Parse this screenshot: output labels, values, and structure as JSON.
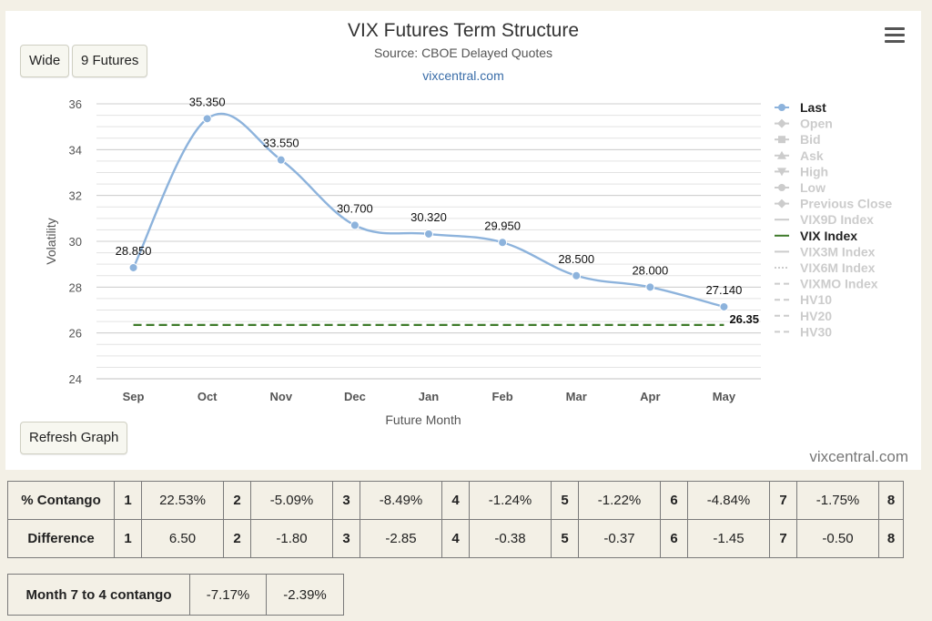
{
  "header": {
    "title": "VIX Futures Term Structure",
    "subtitle": "Source: CBOE Delayed Quotes",
    "link": "vixcentral.com",
    "credits": "vixcentral.com"
  },
  "buttons": {
    "wide": "Wide",
    "futures": "9 Futures",
    "refresh": "Refresh Graph"
  },
  "chart_data": {
    "type": "line",
    "title": "VIX Futures Term Structure",
    "subtitle": "Source: CBOE Delayed Quotes",
    "xlabel": "Future Month",
    "ylabel": "Volatility",
    "categories": [
      "Sep",
      "Oct",
      "Nov",
      "Dec",
      "Jan",
      "Feb",
      "Mar",
      "Apr",
      "May"
    ],
    "ylim": [
      24,
      36
    ],
    "yticks": [
      24,
      26,
      28,
      30,
      32,
      34,
      36
    ],
    "grid": true,
    "legend_position": "right",
    "series": [
      {
        "name": "Last",
        "color": "#8db3dc",
        "values": [
          28.85,
          35.35,
          33.55,
          30.7,
          30.32,
          29.95,
          28.5,
          28.0,
          27.14
        ],
        "labels": [
          "28.850",
          "35.350",
          "33.550",
          "30.700",
          "30.320",
          "29.950",
          "28.500",
          "28.000",
          "27.140"
        ]
      },
      {
        "name": "VIX Index",
        "color": "#3e7a2a",
        "dashed": true,
        "values": [
          26.35,
          26.35,
          26.35,
          26.35,
          26.35,
          26.35,
          26.35,
          26.35,
          26.35
        ],
        "end_label": "26.35"
      }
    ],
    "legend": [
      {
        "name": "Last",
        "active": true,
        "marker": "circle",
        "color": "#8db3dc"
      },
      {
        "name": "Open",
        "active": false,
        "marker": "diamond"
      },
      {
        "name": "Bid",
        "active": false,
        "marker": "square"
      },
      {
        "name": "Ask",
        "active": false,
        "marker": "triangle"
      },
      {
        "name": "High",
        "active": false,
        "marker": "triangle-down"
      },
      {
        "name": "Low",
        "active": false,
        "marker": "circle"
      },
      {
        "name": "Previous Close",
        "active": false,
        "marker": "diamond"
      },
      {
        "name": "VIX9D Index",
        "active": false,
        "marker": "line"
      },
      {
        "name": "VIX Index",
        "active": true,
        "marker": "line",
        "color": "#3e7a2a"
      },
      {
        "name": "VIX3M Index",
        "active": false,
        "marker": "line"
      },
      {
        "name": "VIX6M Index",
        "active": false,
        "marker": "dotted"
      },
      {
        "name": "VIXMO Index",
        "active": false,
        "marker": "dashed"
      },
      {
        "name": "HV10",
        "active": false,
        "marker": "dashed"
      },
      {
        "name": "HV20",
        "active": false,
        "marker": "dashed"
      },
      {
        "name": "HV30",
        "active": false,
        "marker": "dashed"
      }
    ]
  },
  "stats": {
    "rows": [
      {
        "label": "% Contango",
        "cells": [
          {
            "idx": "1",
            "value": "22.53%"
          },
          {
            "idx": "2",
            "value": "-5.09%"
          },
          {
            "idx": "3",
            "value": "-8.49%"
          },
          {
            "idx": "4",
            "value": "-1.24%"
          },
          {
            "idx": "5",
            "value": "-1.22%"
          },
          {
            "idx": "6",
            "value": "-4.84%"
          },
          {
            "idx": "7",
            "value": "-1.75%"
          }
        ],
        "last_idx": "8"
      },
      {
        "label": "Difference",
        "cells": [
          {
            "idx": "1",
            "value": "6.50"
          },
          {
            "idx": "2",
            "value": "-1.80"
          },
          {
            "idx": "3",
            "value": "-2.85"
          },
          {
            "idx": "4",
            "value": "-0.38"
          },
          {
            "idx": "5",
            "value": "-0.37"
          },
          {
            "idx": "6",
            "value": "-1.45"
          },
          {
            "idx": "7",
            "value": "-0.50"
          }
        ],
        "last_idx": "8"
      }
    ]
  },
  "month_contango": {
    "label": "Month 7 to 4 contango",
    "value1": "-7.17%",
    "value2": "-2.39%"
  }
}
